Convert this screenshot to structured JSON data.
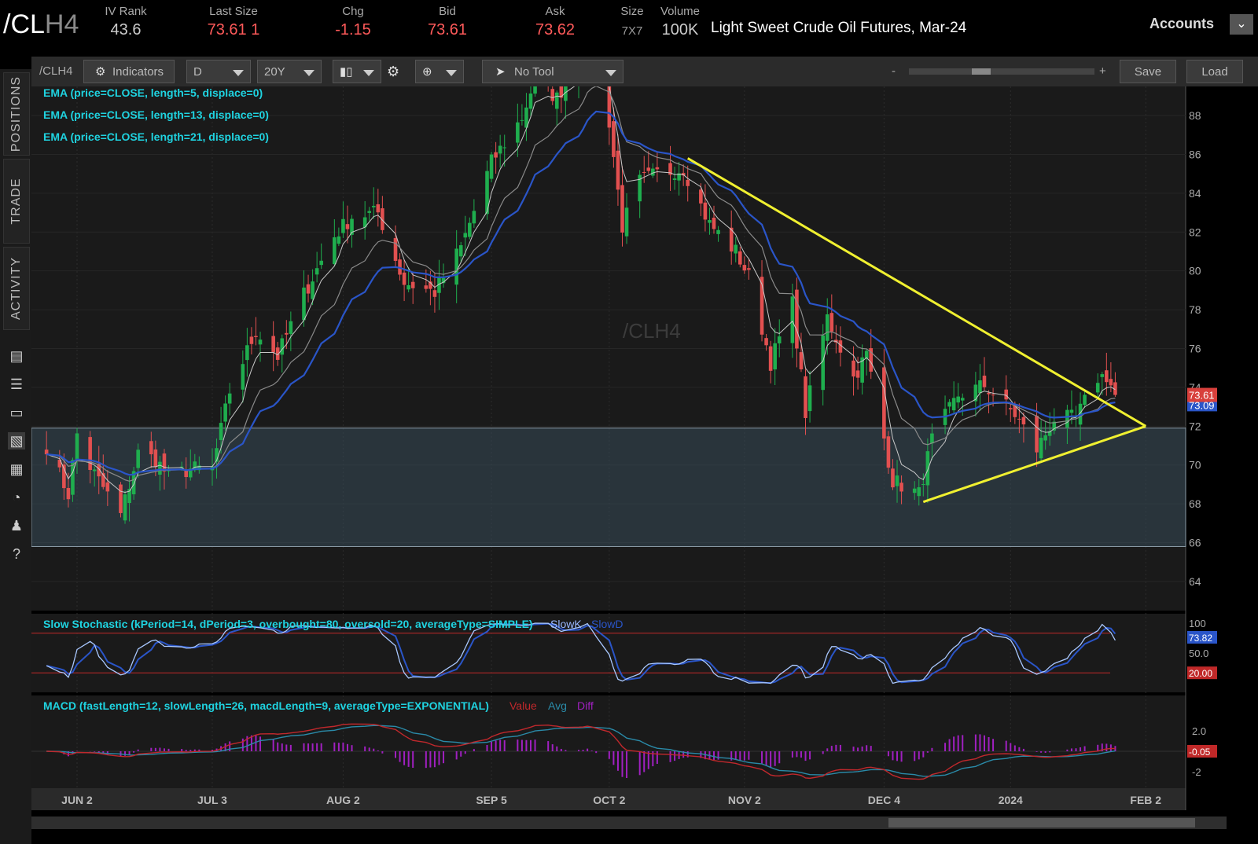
{
  "header": {
    "symbol_main": "/CL",
    "symbol_dim": "H4",
    "fields": [
      {
        "label": "IV Rank",
        "value": "43.6"
      },
      {
        "label": "Last Size",
        "value": "73.61 1"
      },
      {
        "label": "Chg",
        "value": "-1.15"
      },
      {
        "label": "Bid",
        "value": "73.61"
      },
      {
        "label": "Ask",
        "value": "73.62"
      },
      {
        "label": "Size",
        "value": "7X7"
      },
      {
        "label": "Volume",
        "value": "100K"
      }
    ],
    "description": "Light Sweet Crude Oil Futures, Mar-24",
    "accounts": "Accounts",
    "accounts_icon": "chevron-down-icon"
  },
  "sidebar": {
    "tabs": [
      "POSITIONS",
      "TRADE",
      "ACTIVITY"
    ],
    "icons": [
      "monitor-icon",
      "list-icon",
      "folder-icon",
      "chart-icon",
      "grid-icon",
      "gauge-icon",
      "people-icon",
      "help-icon"
    ]
  },
  "toolbar": {
    "symbol": "/CLH4",
    "indicators": "Indicators",
    "aggregation": "D",
    "timeframe": "20Y",
    "tool": "No Tool",
    "zoom_minus": "-",
    "zoom_plus": "+",
    "save": "Save",
    "load": "Load"
  },
  "colors": {
    "up": "#1fae4e",
    "down": "#e25050",
    "ema5": "#c8c8c8",
    "ema13": "#8a8a8a",
    "ema21": "#2a55c8",
    "trendline": "#f0f030",
    "zone": "#364a58",
    "study_text": "#1fd3e0",
    "stoch_k": "#a9c8ff",
    "stoch_d": "#2a55c8",
    "macd_value": "#c0282c",
    "macd_avg": "#2a8aa8",
    "macd_diff": "#a020c0"
  },
  "chart_data": [
    {
      "type": "candlestick",
      "watermark": "/CLH4",
      "studies": [
        "EMA (price=CLOSE, length=5, displace=0)",
        "EMA (price=CLOSE, length=13, displace=0)",
        "EMA (price=CLOSE, length=21, displace=0)"
      ],
      "y_ticks": [
        64,
        66,
        68,
        70,
        72,
        74,
        76,
        78,
        80,
        82,
        84,
        86,
        88
      ],
      "ylim": [
        62.5,
        89.5
      ],
      "x_labels": [
        "JUN 2",
        "JUL 3",
        "AUG 2",
        "SEP 5",
        "OCT 2",
        "NOV 2",
        "DEC 4",
        "2024",
        "FEB 2"
      ],
      "x_label_dates": [
        "2023-06-02",
        "2023-07-03",
        "2023-08-02",
        "2023-09-05",
        "2023-10-02",
        "2023-11-02",
        "2023-12-04",
        "2024-01-02",
        "2024-02-02"
      ],
      "support_zone": [
        65.8,
        71.9
      ],
      "trendlines": [
        {
          "from": [
            "2023-10-20",
            85.8
          ],
          "to": [
            "2024-02-02",
            72.0
          ]
        },
        {
          "from": [
            "2023-12-13",
            68.1
          ],
          "to": [
            "2024-02-02",
            72.0
          ]
        }
      ],
      "last_price": "73.61",
      "ema_price": "73.09",
      "close_path": [
        [
          "2023-05-26",
          71.0
        ],
        [
          "2023-05-31",
          68.5
        ],
        [
          "2023-06-02",
          71.6
        ],
        [
          "2023-06-05",
          69.9
        ],
        [
          "2023-06-12",
          67.4
        ],
        [
          "2023-06-16",
          70.6
        ],
        [
          "2023-06-20",
          70.3
        ],
        [
          "2023-06-23",
          69.4
        ],
        [
          "2023-06-28",
          69.8
        ],
        [
          "2023-07-03",
          69.8
        ],
        [
          "2023-07-07",
          73.8
        ],
        [
          "2023-07-13",
          76.9
        ],
        [
          "2023-07-18",
          75.6
        ],
        [
          "2023-07-24",
          78.8
        ],
        [
          "2023-07-31",
          81.8
        ],
        [
          "2023-08-04",
          82.8
        ],
        [
          "2023-08-10",
          83.0
        ],
        [
          "2023-08-16",
          79.4
        ],
        [
          "2023-08-23",
          78.9
        ],
        [
          "2023-08-29",
          81.2
        ],
        [
          "2023-09-05",
          85.6
        ],
        [
          "2023-09-12",
          87.9
        ],
        [
          "2023-09-15",
          89.9
        ],
        [
          "2023-09-20",
          88.9
        ],
        [
          "2023-09-27",
          91.7
        ],
        [
          "2023-10-02",
          87.7
        ],
        [
          "2023-10-05",
          82.3
        ],
        [
          "2023-10-09",
          84.6
        ],
        [
          "2023-10-13",
          85.0
        ],
        [
          "2023-10-19",
          85.3
        ],
        [
          "2023-10-25",
          82.4
        ],
        [
          "2023-10-31",
          81.0
        ],
        [
          "2023-11-03",
          79.7
        ],
        [
          "2023-11-08",
          75.3
        ],
        [
          "2023-11-13",
          78.3
        ],
        [
          "2023-11-16",
          72.7
        ],
        [
          "2023-11-21",
          77.6
        ],
        [
          "2023-11-27",
          74.5
        ],
        [
          "2023-11-30",
          75.7
        ],
        [
          "2023-12-06",
          69.2
        ],
        [
          "2023-12-12",
          68.5
        ],
        [
          "2023-12-15",
          71.3
        ],
        [
          "2023-12-21",
          73.6
        ],
        [
          "2023-12-27",
          74.1
        ],
        [
          "2024-01-03",
          72.6
        ],
        [
          "2024-01-08",
          70.8
        ],
        [
          "2024-01-12",
          72.4
        ],
        [
          "2024-01-17",
          72.4
        ],
        [
          "2024-01-22",
          74.5
        ],
        [
          "2024-01-24",
          74.6
        ],
        [
          "2024-01-26",
          73.61
        ]
      ]
    },
    {
      "type": "line",
      "title": "Slow Stochastic (kPeriod=14, dPeriod=3, overbought=80, oversold=20, averageType=SIMPLE)",
      "series_names": [
        "SlowK",
        "SlowD"
      ],
      "y_ticks": [
        "100",
        "50.0"
      ],
      "levels": [
        80,
        20
      ],
      "last_k": "73.82",
      "oversold_label": "20.00"
    },
    {
      "type": "line",
      "title": "MACD (fastLength=12, slowLength=26, macdLength=9, averageType=EXPONENTIAL)",
      "series_names": [
        "Value",
        "Avg",
        "Diff"
      ],
      "y_ticks": [
        "2.0",
        "-2"
      ],
      "last_value": "-0.05"
    }
  ]
}
